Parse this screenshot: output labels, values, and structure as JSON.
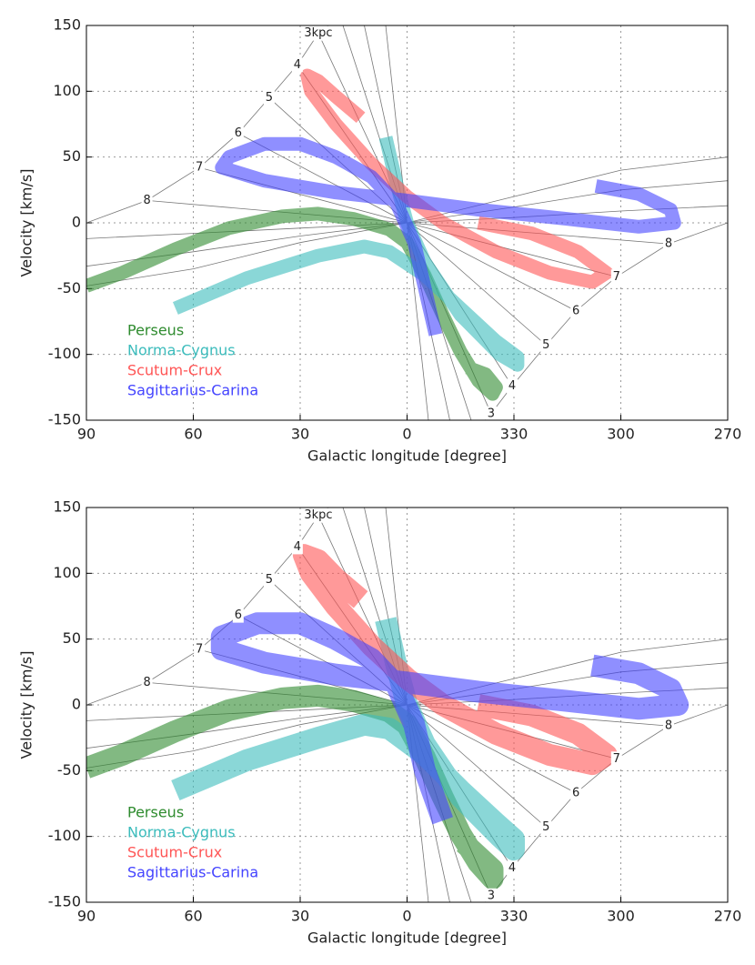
{
  "chart_data": [
    {
      "type": "line",
      "xlabel": "Galactic longitude [degree]",
      "ylabel": "Velocity [km/s]",
      "xlim": [
        90,
        -90
      ],
      "ylim": [
        -150,
        150
      ],
      "xticks": [
        90,
        60,
        30,
        0,
        {
          "value": -30,
          "label": "330"
        },
        {
          "value": -60,
          "label": "300"
        },
        {
          "value": -90,
          "label": "270"
        }
      ],
      "yticks": [
        -150,
        -100,
        -50,
        0,
        50,
        100,
        150
      ],
      "grid": true,
      "legend": "lower left",
      "series": [
        {
          "name": "Perseus",
          "color": "#2e8b2e",
          "x": [
            90,
            80,
            65,
            50,
            35,
            25,
            15,
            5,
            0,
            -5,
            -10,
            -15,
            -20,
            -24,
            -25,
            -22,
            -17
          ],
          "values": [
            -48,
            -38,
            -20,
            -4,
            5,
            7,
            3,
            -5,
            -15,
            -40,
            -70,
            -98,
            -120,
            -130,
            -125,
            -115,
            -110
          ]
        },
        {
          "name": "Norma-Cygnus",
          "color": "#3cbcbc",
          "x": [
            65,
            45,
            25,
            12,
            5,
            -5,
            -15,
            -25,
            -31,
            -31,
            -26,
            -15,
            -5,
            0,
            3,
            6
          ],
          "values": [
            -65,
            -42,
            -25,
            -18,
            -22,
            -40,
            -65,
            -90,
            -102,
            -108,
            -100,
            -70,
            -30,
            0,
            30,
            65
          ]
        },
        {
          "name": "Scutum-Crux",
          "color": "#ff5555",
          "x": [
            13,
            20,
            25,
            28,
            27,
            20,
            10,
            0,
            -10,
            -25,
            -40,
            -52,
            -56,
            -48,
            -35,
            -20
          ],
          "values": [
            80,
            96,
            108,
            112,
            100,
            75,
            45,
            20,
            0,
            -22,
            -38,
            -45,
            -38,
            -22,
            -8,
            0
          ]
        },
        {
          "name": "Sagittarius-Carina",
          "color": "#4444ff",
          "x": [
            -53,
            -65,
            -74,
            -75,
            -65,
            -45,
            -20,
            0,
            20,
            40,
            52,
            50,
            40,
            30,
            20,
            10,
            3,
            -2,
            -5,
            -8
          ],
          "values": [
            28,
            22,
            10,
            0,
            -3,
            3,
            10,
            17,
            23,
            32,
            42,
            50,
            60,
            60,
            50,
            35,
            15,
            -15,
            -50,
            -85
          ]
        }
      ],
      "reference_lines": [
        {
          "x": [
            90,
            73,
            58.3,
            47.4,
            38.7,
            30.8,
            24.9,
            22
          ],
          "values": [
            0,
            17,
            42,
            68,
            95,
            120,
            144,
            150
          ]
        },
        {
          "x": [
            -22,
            -23.6,
            -29.5,
            -39,
            -47.4,
            -58.8,
            -73.4,
            -90
          ],
          "values": [
            -150,
            -145,
            -124,
            -93,
            -67,
            -41,
            -16,
            0
          ]
        },
        {
          "x": [
            90,
            60,
            30,
            0,
            -30,
            -60,
            -90
          ],
          "values": [
            -48,
            -35,
            -15,
            0,
            20,
            40,
            50
          ]
        },
        {
          "x": [
            90,
            60,
            30,
            0,
            -30,
            -60,
            -90
          ],
          "values": [
            -33,
            -22,
            -10,
            0,
            12,
            25,
            32
          ]
        },
        {
          "x": [
            90,
            60,
            30,
            0,
            -30,
            -60,
            -90
          ],
          "values": [
            -12,
            -8,
            -4,
            0,
            4,
            9,
            13
          ]
        },
        {
          "x": [
            73,
            0,
            -73.4
          ],
          "values": [
            17,
            0,
            -16
          ]
        },
        {
          "x": [
            58.3,
            0,
            -58.8
          ],
          "values": [
            42,
            0,
            -41
          ]
        },
        {
          "x": [
            47.4,
            0,
            -47.4
          ],
          "values": [
            68,
            0,
            -67
          ]
        },
        {
          "x": [
            38.7,
            0,
            -39
          ],
          "values": [
            95,
            0,
            -93
          ]
        },
        {
          "x": [
            30.8,
            0,
            -29.5
          ],
          "values": [
            120,
            0,
            -124
          ]
        },
        {
          "x": [
            24.9,
            0,
            -23.6
          ],
          "values": [
            144,
            0,
            -145
          ]
        },
        {
          "x": [
            12,
            -12
          ],
          "values": [
            150,
            -150
          ]
        },
        {
          "x": [
            6,
            -6
          ],
          "values": [
            150,
            -150
          ]
        },
        {
          "x": [
            18,
            -18
          ],
          "values": [
            150,
            -150
          ]
        }
      ],
      "annotations": [
        {
          "text": "3kpc",
          "x": 24.9,
          "y": 144
        },
        {
          "text": "4",
          "x": 30.8,
          "y": 120
        },
        {
          "text": "5",
          "x": 38.7,
          "y": 95
        },
        {
          "text": "6",
          "x": 47.4,
          "y": 68
        },
        {
          "text": "7",
          "x": 58.3,
          "y": 42
        },
        {
          "text": "8",
          "x": 73,
          "y": 17
        },
        {
          "text": "3",
          "x": -23.6,
          "y": -145
        },
        {
          "text": "4",
          "x": -29.5,
          "y": -124
        },
        {
          "text": "5",
          "x": -39,
          "y": -93
        },
        {
          "text": "6",
          "x": -47.4,
          "y": -67
        },
        {
          "text": "7",
          "x": -58.8,
          "y": -41
        },
        {
          "text": "8",
          "x": -73.4,
          "y": -16
        }
      ]
    },
    {
      "type": "line",
      "xlabel": "Galactic longitude [degree]",
      "ylabel": "Velocity [km/s]",
      "xlim": [
        90,
        -90
      ],
      "ylim": [
        -150,
        150
      ],
      "xticks": [
        90,
        60,
        30,
        0,
        {
          "value": -30,
          "label": "330"
        },
        {
          "value": -60,
          "label": "300"
        },
        {
          "value": -90,
          "label": "270"
        }
      ],
      "yticks": [
        -150,
        -100,
        -50,
        0,
        50,
        100,
        150
      ],
      "grid": true,
      "legend": "lower left",
      "series": [
        {
          "name": "Perseus",
          "color": "#2e8b2e",
          "x": [
            90,
            80,
            65,
            50,
            35,
            25,
            15,
            5,
            0,
            -5,
            -10,
            -15,
            -20,
            -24,
            -24,
            -20,
            -16
          ],
          "values": [
            -48,
            -38,
            -20,
            -4,
            5,
            7,
            3,
            -5,
            -15,
            -40,
            -70,
            -98,
            -120,
            -132,
            -125,
            -115,
            -105
          ]
        },
        {
          "name": "Norma-Cygnus",
          "color": "#3cbcbc",
          "x": [
            65,
            45,
            25,
            12,
            5,
            -5,
            -15,
            -25,
            -30,
            -30,
            -26,
            -15,
            -5,
            0,
            3,
            6
          ],
          "values": [
            -65,
            -42,
            -25,
            -15,
            -18,
            -38,
            -65,
            -90,
            -102,
            -110,
            -100,
            -70,
            -30,
            0,
            30,
            65
          ]
        },
        {
          "name": "Scutum-Crux",
          "color": "#ff5555",
          "x": [
            13,
            20,
            25,
            29,
            27,
            20,
            10,
            0,
            -10,
            -25,
            -40,
            -52,
            -56,
            -48,
            -35,
            -20
          ],
          "values": [
            80,
            96,
            110,
            114,
            100,
            75,
            45,
            20,
            0,
            -22,
            -38,
            -45,
            -38,
            -22,
            -8,
            0
          ]
        },
        {
          "name": "Sagittarius-Carina",
          "color": "#4444ff",
          "x": [
            -52,
            -65,
            -74,
            -76,
            -65,
            -45,
            -20,
            0,
            20,
            40,
            52,
            52,
            42,
            30,
            20,
            10,
            3,
            -2,
            -5,
            -10
          ],
          "values": [
            30,
            24,
            12,
            0,
            -3,
            3,
            10,
            17,
            23,
            32,
            42,
            52,
            62,
            62,
            50,
            35,
            15,
            -15,
            -50,
            -88
          ]
        }
      ],
      "reference_lines": [
        {
          "x": [
            90,
            73,
            58.3,
            47.4,
            38.7,
            30.8,
            24.9,
            22
          ],
          "values": [
            0,
            17,
            42,
            68,
            95,
            120,
            144,
            150
          ]
        },
        {
          "x": [
            -22,
            -23.6,
            -29.5,
            -39,
            -47.4,
            -58.8,
            -73.4,
            -90
          ],
          "values": [
            -150,
            -145,
            -124,
            -93,
            -67,
            -41,
            -16,
            0
          ]
        },
        {
          "x": [
            90,
            60,
            30,
            0,
            -30,
            -60,
            -90
          ],
          "values": [
            -48,
            -35,
            -15,
            0,
            20,
            40,
            50
          ]
        },
        {
          "x": [
            90,
            60,
            30,
            0,
            -30,
            -60,
            -90
          ],
          "values": [
            -33,
            -22,
            -10,
            0,
            12,
            25,
            32
          ]
        },
        {
          "x": [
            90,
            60,
            30,
            0,
            -30,
            -60,
            -90
          ],
          "values": [
            -12,
            -8,
            -4,
            0,
            4,
            9,
            13
          ]
        },
        {
          "x": [
            73,
            0,
            -73.4
          ],
          "values": [
            17,
            0,
            -16
          ]
        },
        {
          "x": [
            58.3,
            0,
            -58.8
          ],
          "values": [
            42,
            0,
            -41
          ]
        },
        {
          "x": [
            47.4,
            0,
            -47.4
          ],
          "values": [
            68,
            0,
            -67
          ]
        },
        {
          "x": [
            38.7,
            0,
            -39
          ],
          "values": [
            95,
            0,
            -93
          ]
        },
        {
          "x": [
            30.8,
            0,
            -29.5
          ],
          "values": [
            120,
            0,
            -124
          ]
        },
        {
          "x": [
            24.9,
            0,
            -23.6
          ],
          "values": [
            144,
            0,
            -145
          ]
        },
        {
          "x": [
            12,
            -12
          ],
          "values": [
            150,
            -150
          ]
        },
        {
          "x": [
            6,
            -6
          ],
          "values": [
            150,
            -150
          ]
        },
        {
          "x": [
            18,
            -18
          ],
          "values": [
            150,
            -150
          ]
        }
      ],
      "annotations": [
        {
          "text": "3kpc",
          "x": 24.9,
          "y": 144
        },
        {
          "text": "4",
          "x": 30.8,
          "y": 120
        },
        {
          "text": "5",
          "x": 38.7,
          "y": 95
        },
        {
          "text": "6",
          "x": 47.4,
          "y": 68
        },
        {
          "text": "7",
          "x": 58.3,
          "y": 42
        },
        {
          "text": "8",
          "x": 73,
          "y": 17
        },
        {
          "text": "3",
          "x": -23.6,
          "y": -145
        },
        {
          "text": "4",
          "x": -29.5,
          "y": -124
        },
        {
          "text": "5",
          "x": -39,
          "y": -93
        },
        {
          "text": "6",
          "x": -47.4,
          "y": -67
        },
        {
          "text": "7",
          "x": -58.8,
          "y": -41
        },
        {
          "text": "8",
          "x": -73.4,
          "y": -16
        }
      ]
    }
  ]
}
